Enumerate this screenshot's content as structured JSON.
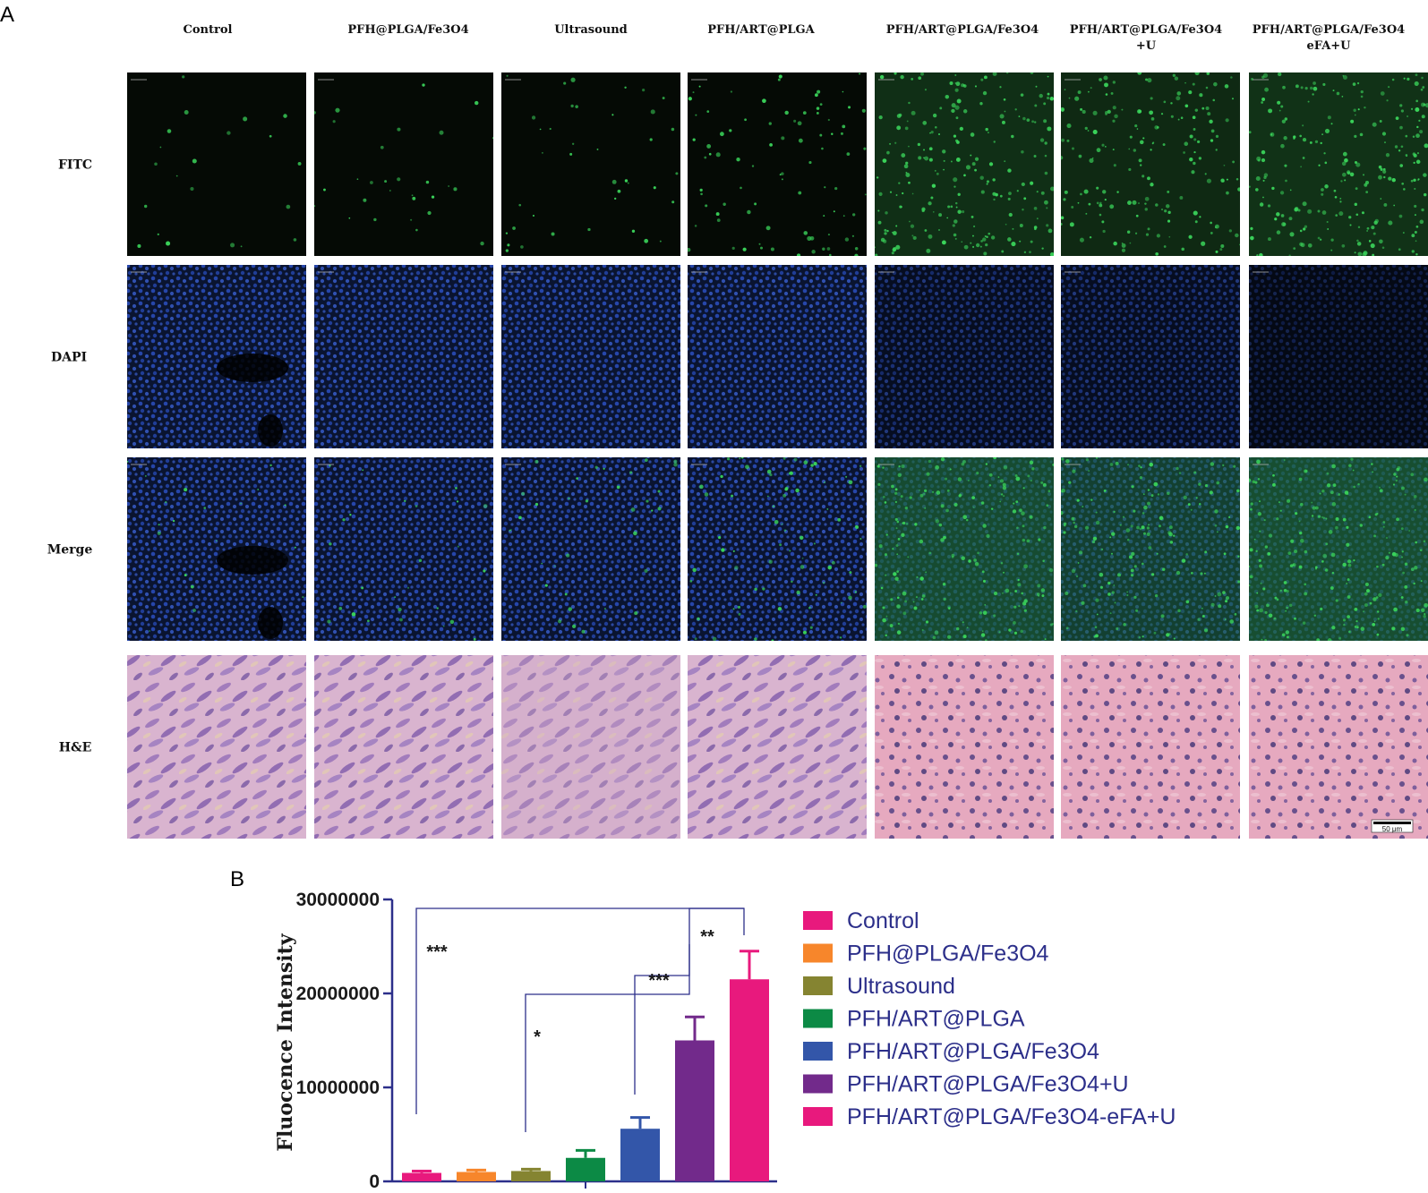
{
  "panel_a": {
    "letter": "A",
    "columns": [
      {
        "line1": "Control",
        "line2": ""
      },
      {
        "line1": "PFH@PLGA/Fe3O4",
        "line2": ""
      },
      {
        "line1": "Ultrasound",
        "line2": ""
      },
      {
        "line1": "PFH/ART@PLGA",
        "line2": ""
      },
      {
        "line1": "PFH/ART@PLGA/Fe3O4",
        "line2": ""
      },
      {
        "line1": "PFH/ART@PLGA/Fe3O4",
        "line2": "+U"
      },
      {
        "line1": "PFH/ART@PLGA/Fe3O4",
        "line2": "eFA+U"
      }
    ],
    "rows": [
      {
        "label": "FITC",
        "kind": "fitc"
      },
      {
        "label": "DAPI",
        "kind": "dapi"
      },
      {
        "label": "Merge",
        "kind": "merge"
      },
      {
        "label": "H&E",
        "kind": "he"
      }
    ],
    "green_level": [
      0.05,
      0.08,
      0.12,
      0.3,
      0.85,
      0.7,
      0.9
    ],
    "scale_bar": "50 μm",
    "colors": {
      "fitc_bg": "#050a05",
      "dapi_bg": "#0a1430",
      "he_bg": "#d8b0c8",
      "green": "#3ad35a",
      "blue": "#2b4fc0"
    }
  },
  "panel_b": {
    "letter": "B",
    "chart_data": {
      "type": "bar",
      "categories": [
        "Control",
        "PFH@PLGA/Fe3O4",
        "Ultrasound",
        "PFH/ART@PLGA",
        "PFH/ART@PLGA/Fe3O4",
        "PFH/ART@PLGA/Fe3O4+U",
        "PFH/ART@PLGA/Fe3O4-eFA+U"
      ],
      "values": [
        900000,
        1000000,
        1100000,
        2500000,
        5600000,
        15000000,
        21500000
      ],
      "errors": [
        200000,
        200000,
        200000,
        800000,
        1200000,
        2500000,
        3000000
      ],
      "colors": [
        "#e8197d",
        "#f7862b",
        "#858431",
        "#0c8a45",
        "#3356a9",
        "#722a8b",
        "#e8197d"
      ],
      "ylabel": "Fluocence Intensity",
      "ylim": [
        0,
        30000000
      ],
      "yticks": [
        0,
        10000000,
        20000000,
        30000000
      ],
      "ytick_labels": [
        "0",
        "10000000",
        "20000000",
        "30000000"
      ],
      "legend_position": "right",
      "significance": [
        {
          "from": 0,
          "to": 6,
          "label": "***"
        },
        {
          "from": 2,
          "to": 5,
          "label": "*"
        },
        {
          "from": 4,
          "to": 5,
          "label": "***"
        },
        {
          "from": 5,
          "to": 6,
          "label": "**"
        }
      ]
    }
  }
}
